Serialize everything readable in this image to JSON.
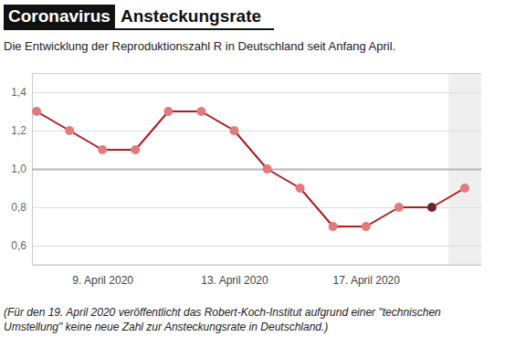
{
  "chart_data": {
    "type": "line",
    "title": [
      "Coronavirus",
      "Ansteckungsrate"
    ],
    "subtitle": "Die Entwicklung der Reproduktionszahl R in Deutschland seit Anfang April.",
    "annotations": [
      "(Für den 19. April 2020 veröffentlicht das Robert-Koch-Institut aufgrund einer \"technischen Umstellung\" keine neue Zahl zur Ansteckungsrate in Deutschland.)"
    ],
    "categories": [
      null,
      null,
      "9. April 2020",
      null,
      null,
      null,
      "13. April 2020",
      null,
      null,
      null,
      "17. April 2020",
      null,
      null,
      null
    ],
    "series": [
      {
        "name": "Reproduktionszahl R",
        "color": "#b0191e",
        "marker": "circle",
        "colors": [
          "#e27a7e",
          "#e27a7e",
          "#e27a7e",
          "#e27a7e",
          "#e27a7e",
          "#e27a7e",
          "#e27a7e",
          "#e27a7e",
          "#e27a7e",
          "#e27a7e",
          "#e27a7e",
          "#e27a7e",
          "#6e2230",
          "#e27a7e"
        ],
        "values": [
          1.3,
          1.2,
          1.1,
          1.1,
          1.3,
          1.3,
          1.2,
          1.0,
          0.9,
          0.7,
          0.7,
          0.8,
          0.8,
          0.9
        ]
      }
    ],
    "ylim": [
      0.5,
      1.5
    ],
    "yticks": [
      {
        "value": 0.6,
        "label": "0,6"
      },
      {
        "value": 0.8,
        "label": "0,8"
      },
      {
        "value": 1.0,
        "label": "1,0"
      },
      {
        "value": 1.2,
        "label": "1,2"
      },
      {
        "value": 1.4,
        "label": "1,4"
      }
    ],
    "grid": true
  }
}
